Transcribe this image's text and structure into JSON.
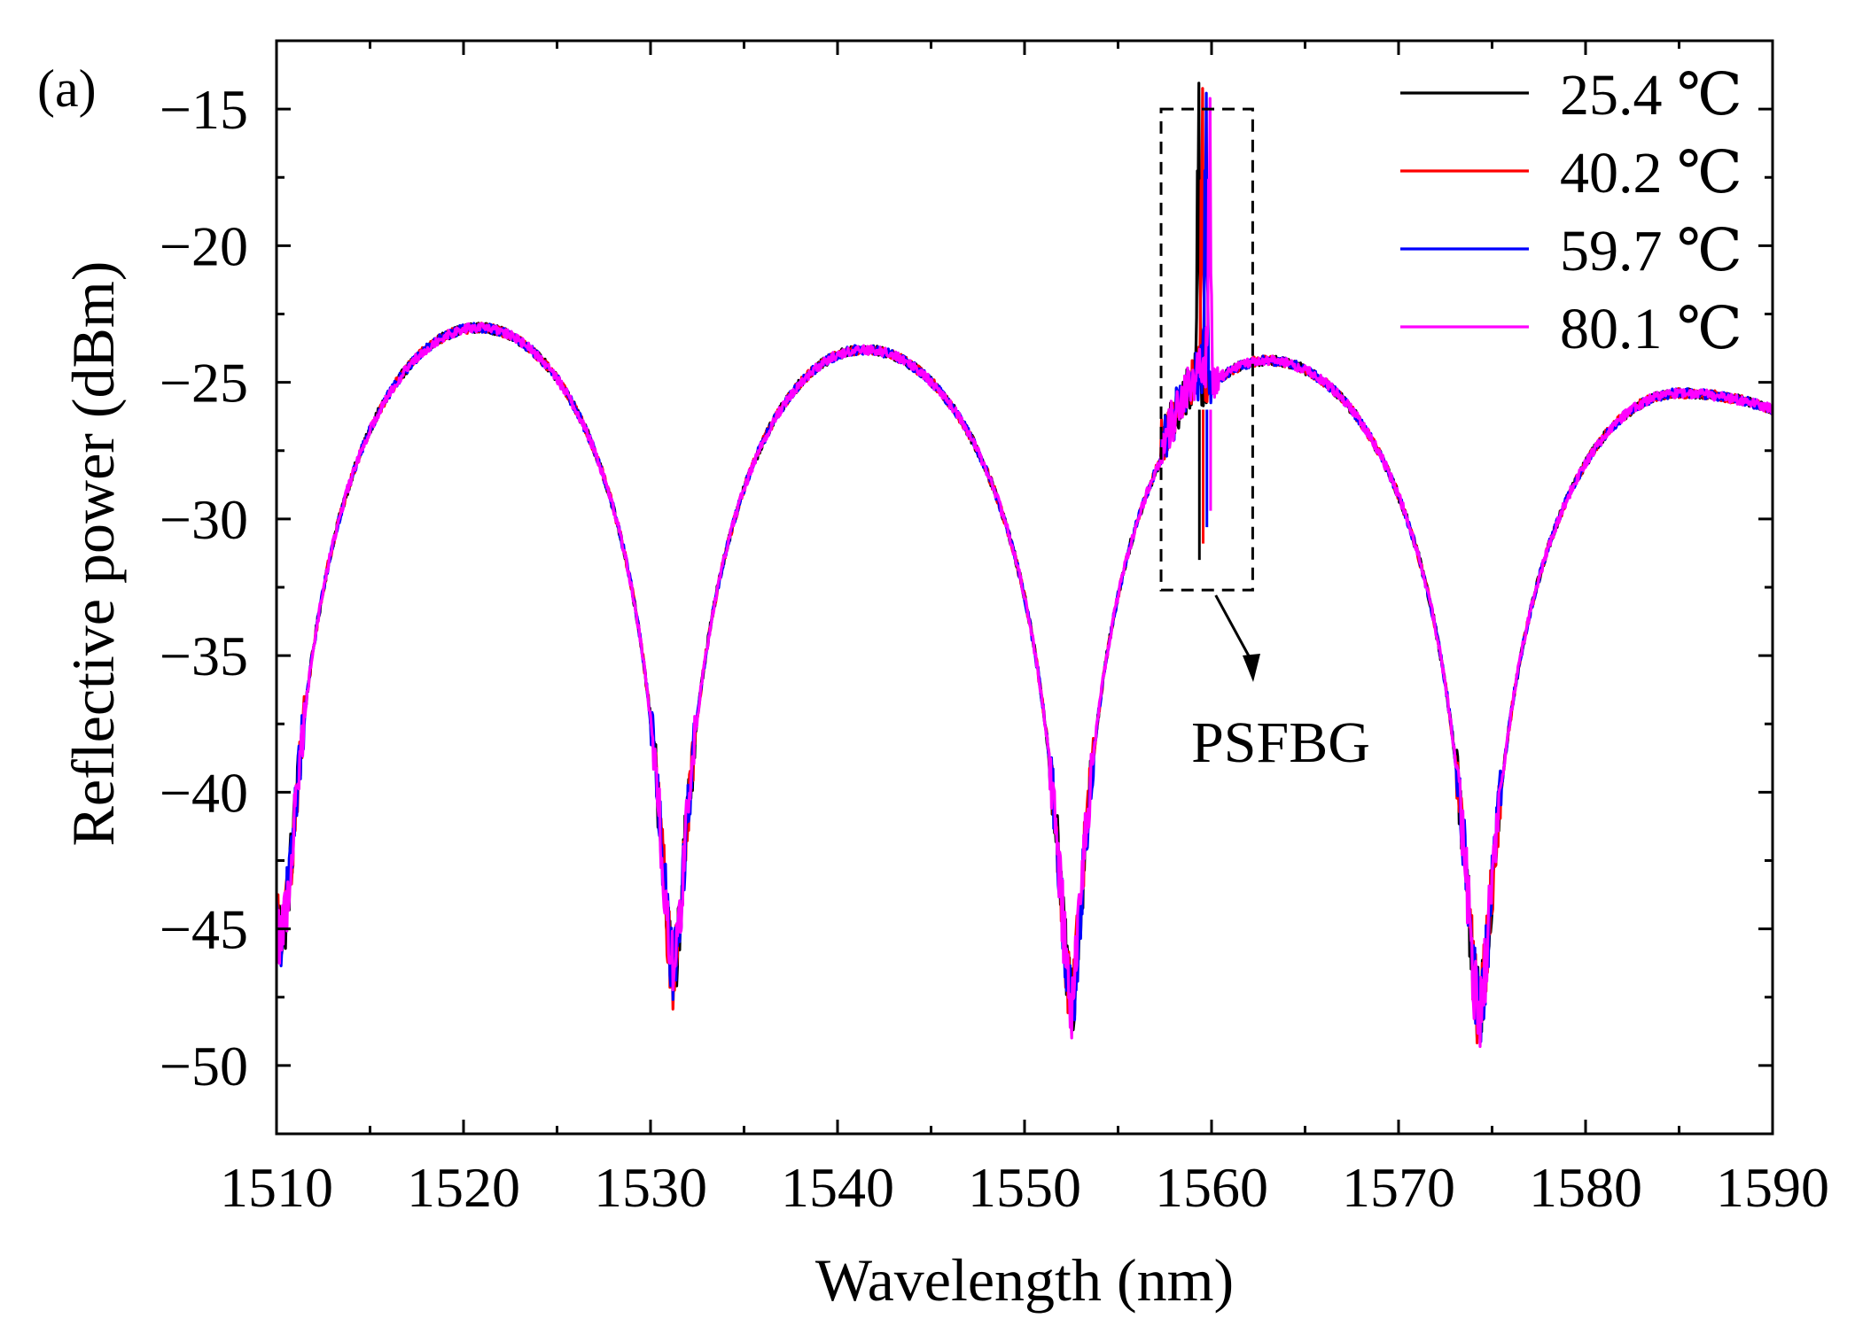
{
  "chart_data": {
    "type": "line",
    "panel_label": "(a)",
    "xlabel": "Wavelength (nm)",
    "ylabel": "Reflective power (dBm)",
    "xlim": [
      1510,
      1590
    ],
    "ylim": [
      -52.5,
      -12.5
    ],
    "xticks": [
      1510,
      1520,
      1530,
      1540,
      1550,
      1560,
      1570,
      1580,
      1590
    ],
    "xtick_labels": [
      "1510",
      "1520",
      "1530",
      "1540",
      "1550",
      "1560",
      "1570",
      "1580",
      "1590"
    ],
    "yticks": [
      -15,
      -20,
      -25,
      -30,
      -35,
      -40,
      -45,
      -50
    ],
    "ytick_labels": [
      "−15",
      "−20",
      "−25",
      "−30",
      "−35",
      "−40",
      "−45",
      "−50"
    ],
    "series": [
      {
        "name": "25.4 ℃",
        "color": "#000000",
        "peak_wavelength": 1559.3,
        "peak_value": -15.7
      },
      {
        "name": "40.2 ℃",
        "color": "#ff0000",
        "peak_wavelength": 1559.5,
        "peak_value": -15.9
      },
      {
        "name": "59.7 ℃",
        "color": "#0000ff",
        "peak_wavelength": 1559.7,
        "peak_value": -16.1
      },
      {
        "name": "80.1 ℃",
        "color": "#ff00ff",
        "peak_wavelength": 1559.9,
        "peak_value": -16.3
      }
    ],
    "envelope": {
      "minima": [
        {
          "x": 1510.3,
          "y": -45
        },
        {
          "x": 1531.2,
          "y": -46.5
        },
        {
          "x": 1552.5,
          "y": -47.5
        },
        {
          "x": 1574.3,
          "y": -48
        }
      ],
      "maxima": [
        {
          "x": 1520.8,
          "y": -23
        },
        {
          "x": 1541.4,
          "y": -23.8
        },
        {
          "x": 1563.0,
          "y": -24.2
        },
        {
          "x": 1585.0,
          "y": -25.4
        }
      ],
      "end_value": -27.5
    },
    "annotation": {
      "text": "PSFBG",
      "box_x": [
        1557.3,
        1562.2
      ],
      "box_y": [
        -15.0,
        -32.6
      ]
    },
    "legend_position": "top-right"
  }
}
